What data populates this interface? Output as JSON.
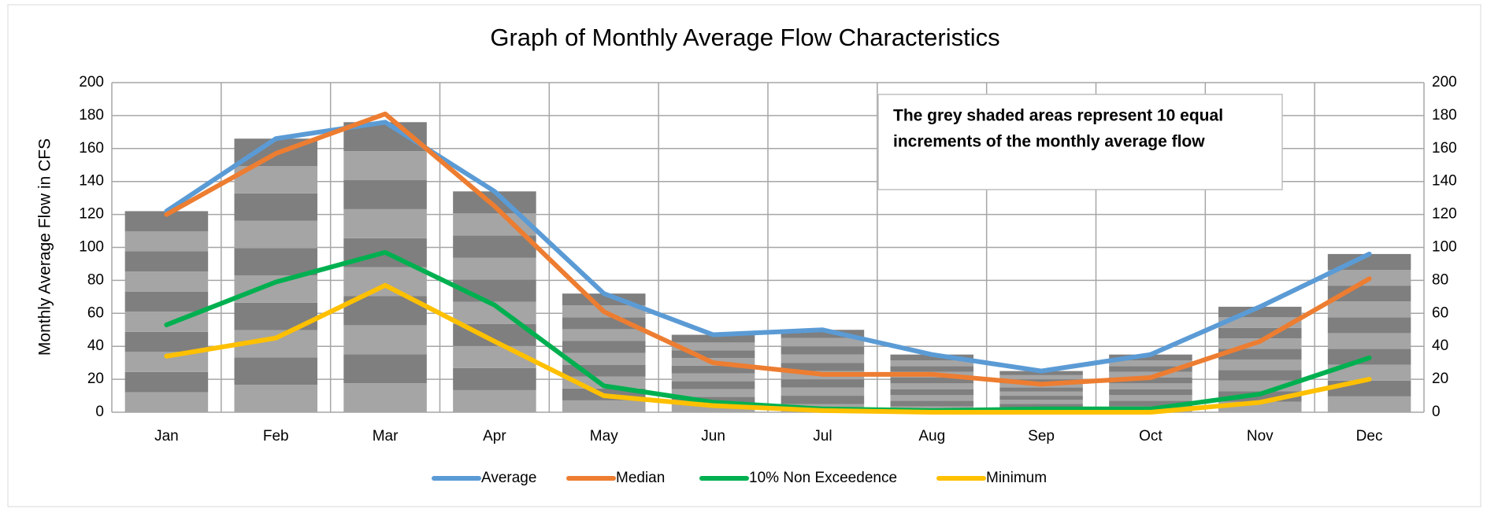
{
  "chart_data": {
    "type": "line",
    "title": "Graph of Monthly Average Flow Characteristics",
    "y_label": "Monthly Average Flow in CFS",
    "annotation": [
      "The grey shaded areas represent 10 equal",
      "increments of the monthly average flow"
    ],
    "bar_increments": 10,
    "bar_colors": [
      "#a5a5a5",
      "#7f7f7f"
    ],
    "categories": [
      "Jan",
      "Feb",
      "Mar",
      "Apr",
      "May",
      "Jun",
      "Jul",
      "Aug",
      "Sep",
      "Oct",
      "Nov",
      "Dec"
    ],
    "series": [
      {
        "name": "Average",
        "color": "#5b9bd5",
        "values": [
          122,
          166,
          176,
          134,
          72,
          47,
          50,
          35,
          25,
          35,
          64,
          96
        ]
      },
      {
        "name": "Median",
        "color": "#ed7d31",
        "values": [
          120,
          157,
          181,
          125,
          61,
          30,
          23,
          23,
          17,
          21,
          43,
          81
        ]
      },
      {
        "name": "10% Non Exceedence",
        "color": "#00b050",
        "values": [
          53,
          79,
          97,
          65,
          16,
          6,
          2,
          1,
          2,
          2,
          11,
          33
        ]
      },
      {
        "name": "Minimum",
        "color": "#ffc000",
        "values": [
          34,
          45,
          77,
          43,
          10,
          4,
          1,
          0,
          0,
          0,
          6,
          20
        ]
      }
    ],
    "ylim": [
      0,
      200
    ],
    "yticks": [
      0,
      20,
      40,
      60,
      80,
      100,
      120,
      140,
      160,
      180,
      200
    ],
    "y2lim": [
      0,
      200
    ],
    "y2ticks": [
      0,
      20,
      40,
      60,
      80,
      100,
      120,
      140,
      160,
      180,
      200
    ],
    "grid": true,
    "legend": "bottom"
  }
}
